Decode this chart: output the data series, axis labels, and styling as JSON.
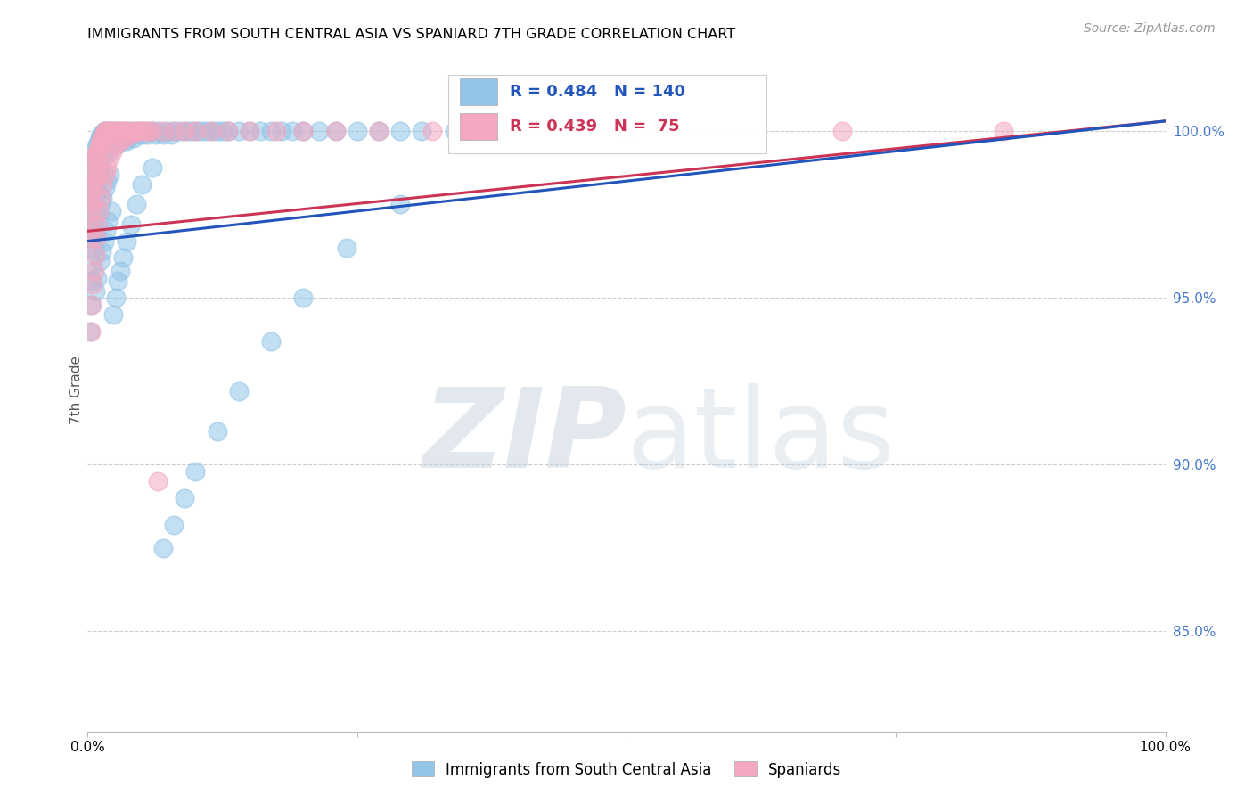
{
  "title": "IMMIGRANTS FROM SOUTH CENTRAL ASIA VS SPANIARD 7TH GRADE CORRELATION CHART",
  "source": "Source: ZipAtlas.com",
  "ylabel": "7th Grade",
  "y_tick_labels": [
    "100.0%",
    "95.0%",
    "90.0%",
    "85.0%"
  ],
  "y_tick_values": [
    1.0,
    0.95,
    0.9,
    0.85
  ],
  "x_range": [
    0.0,
    1.0
  ],
  "y_range": [
    0.82,
    1.025
  ],
  "blue_R": 0.484,
  "blue_N": 140,
  "pink_R": 0.439,
  "pink_N": 75,
  "blue_color": "#92C5E8",
  "pink_color": "#F4A8C0",
  "blue_line_color": "#2255BB",
  "pink_line_color": "#CC3355",
  "legend_blue_label": "Immigrants from South Central Asia",
  "legend_pink_label": "Spaniards",
  "watermark_zip": "ZIP",
  "watermark_atlas": "atlas",
  "blue_scatter_x": [
    0.001,
    0.002,
    0.002,
    0.003,
    0.003,
    0.003,
    0.004,
    0.004,
    0.005,
    0.005,
    0.005,
    0.006,
    0.006,
    0.006,
    0.007,
    0.007,
    0.007,
    0.008,
    0.008,
    0.008,
    0.009,
    0.009,
    0.009,
    0.01,
    0.01,
    0.01,
    0.011,
    0.011,
    0.011,
    0.012,
    0.012,
    0.013,
    0.013,
    0.014,
    0.014,
    0.015,
    0.015,
    0.016,
    0.016,
    0.017,
    0.018,
    0.018,
    0.019,
    0.02,
    0.02,
    0.021,
    0.022,
    0.023,
    0.024,
    0.025,
    0.026,
    0.027,
    0.028,
    0.03,
    0.031,
    0.032,
    0.033,
    0.035,
    0.036,
    0.038,
    0.04,
    0.041,
    0.043,
    0.045,
    0.047,
    0.05,
    0.052,
    0.055,
    0.058,
    0.06,
    0.063,
    0.066,
    0.07,
    0.073,
    0.077,
    0.08,
    0.085,
    0.09,
    0.095,
    0.1,
    0.105,
    0.11,
    0.115,
    0.12,
    0.125,
    0.13,
    0.14,
    0.15,
    0.16,
    0.17,
    0.18,
    0.19,
    0.2,
    0.215,
    0.23,
    0.25,
    0.27,
    0.29,
    0.31,
    0.34,
    0.002,
    0.003,
    0.004,
    0.005,
    0.006,
    0.007,
    0.008,
    0.009,
    0.01,
    0.011,
    0.012,
    0.013,
    0.014,
    0.015,
    0.016,
    0.017,
    0.018,
    0.019,
    0.02,
    0.022,
    0.024,
    0.026,
    0.028,
    0.03,
    0.033,
    0.036,
    0.04,
    0.045,
    0.05,
    0.06,
    0.07,
    0.08,
    0.09,
    0.1,
    0.12,
    0.14,
    0.17,
    0.2,
    0.24,
    0.29
  ],
  "blue_scatter_y": [
    0.97,
    0.975,
    0.965,
    0.98,
    0.972,
    0.968,
    0.985,
    0.978,
    0.99,
    0.982,
    0.976,
    0.988,
    0.984,
    0.979,
    0.992,
    0.986,
    0.981,
    0.995,
    0.989,
    0.983,
    0.996,
    0.99,
    0.985,
    0.997,
    0.991,
    0.987,
    0.998,
    0.993,
    0.988,
    0.999,
    0.994,
    0.998,
    0.992,
    0.999,
    0.993,
    1.0,
    0.995,
    0.999,
    0.994,
    1.0,
    0.998,
    0.993,
    0.999,
    1.0,
    0.996,
    1.0,
    0.997,
    1.0,
    0.996,
    0.998,
    0.997,
    1.0,
    0.996,
    0.998,
    1.0,
    0.997,
    0.998,
    1.0,
    0.997,
    0.998,
    0.999,
    1.0,
    0.998,
    0.999,
    1.0,
    0.999,
    1.0,
    0.999,
    1.0,
    1.0,
    0.999,
    1.0,
    0.999,
    1.0,
    0.999,
    1.0,
    1.0,
    1.0,
    1.0,
    1.0,
    1.0,
    1.0,
    1.0,
    1.0,
    1.0,
    1.0,
    1.0,
    1.0,
    1.0,
    1.0,
    1.0,
    1.0,
    1.0,
    1.0,
    1.0,
    1.0,
    1.0,
    1.0,
    1.0,
    1.0,
    0.94,
    0.948,
    0.955,
    0.96,
    0.965,
    0.952,
    0.97,
    0.956,
    0.975,
    0.961,
    0.978,
    0.964,
    0.98,
    0.967,
    0.983,
    0.97,
    0.985,
    0.973,
    0.987,
    0.976,
    0.945,
    0.95,
    0.955,
    0.958,
    0.962,
    0.967,
    0.972,
    0.978,
    0.984,
    0.989,
    0.875,
    0.882,
    0.89,
    0.898,
    0.91,
    0.922,
    0.937,
    0.95,
    0.965,
    0.978
  ],
  "pink_scatter_x": [
    0.001,
    0.002,
    0.002,
    0.003,
    0.004,
    0.004,
    0.005,
    0.005,
    0.006,
    0.006,
    0.007,
    0.008,
    0.008,
    0.009,
    0.01,
    0.01,
    0.011,
    0.012,
    0.013,
    0.014,
    0.015,
    0.016,
    0.017,
    0.018,
    0.019,
    0.02,
    0.022,
    0.024,
    0.026,
    0.028,
    0.03,
    0.033,
    0.036,
    0.04,
    0.045,
    0.05,
    0.055,
    0.06,
    0.07,
    0.08,
    0.09,
    0.1,
    0.115,
    0.13,
    0.15,
    0.175,
    0.2,
    0.23,
    0.27,
    0.32,
    0.003,
    0.004,
    0.005,
    0.006,
    0.007,
    0.008,
    0.009,
    0.01,
    0.012,
    0.014,
    0.016,
    0.018,
    0.02,
    0.023,
    0.026,
    0.03,
    0.034,
    0.04,
    0.047,
    0.055,
    0.065,
    0.35,
    0.5,
    0.7,
    0.85
  ],
  "pink_scatter_y": [
    0.972,
    0.978,
    0.968,
    0.982,
    0.976,
    0.984,
    0.988,
    0.98,
    0.99,
    0.985,
    0.992,
    0.993,
    0.986,
    0.994,
    0.995,
    0.989,
    0.996,
    0.997,
    0.998,
    0.998,
    0.999,
    1.0,
    0.999,
    1.0,
    0.999,
    1.0,
    1.0,
    0.999,
    1.0,
    1.0,
    1.0,
    1.0,
    1.0,
    1.0,
    1.0,
    1.0,
    1.0,
    1.0,
    1.0,
    1.0,
    1.0,
    1.0,
    1.0,
    1.0,
    1.0,
    1.0,
    1.0,
    1.0,
    1.0,
    1.0,
    0.94,
    0.948,
    0.954,
    0.958,
    0.963,
    0.968,
    0.972,
    0.976,
    0.98,
    0.984,
    0.987,
    0.989,
    0.992,
    0.994,
    0.996,
    0.997,
    0.998,
    0.999,
    1.0,
    1.0,
    0.895,
    1.0,
    1.0,
    1.0,
    1.0
  ]
}
